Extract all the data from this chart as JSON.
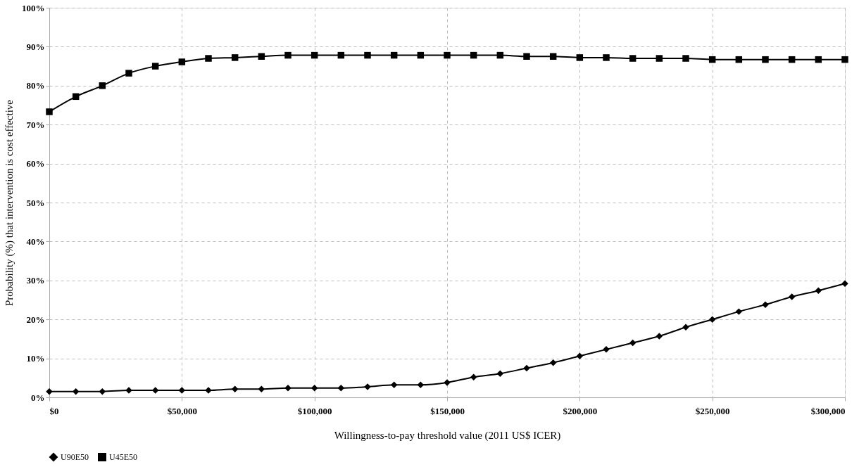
{
  "chart_data": {
    "type": "line",
    "xlabel": "Willingness-to-pay threshold value (2011 US$ ICER)",
    "ylabel": "Probability (%) that intervention is cost effective",
    "x": [
      0,
      10000,
      20000,
      30000,
      40000,
      50000,
      60000,
      70000,
      80000,
      90000,
      100000,
      110000,
      120000,
      130000,
      140000,
      150000,
      160000,
      170000,
      180000,
      190000,
      200000,
      210000,
      220000,
      230000,
      240000,
      250000,
      260000,
      270000,
      280000,
      290000,
      300000
    ],
    "series": [
      {
        "name": "U90E50",
        "color": "#000000",
        "marker": "diamond",
        "values": [
          1.5,
          1.5,
          1.5,
          1.8,
          1.8,
          1.8,
          1.8,
          2.1,
          2.1,
          2.4,
          2.4,
          2.4,
          2.7,
          3.2,
          3.2,
          3.8,
          5.2,
          6.1,
          7.5,
          8.9,
          10.6,
          12.3,
          14.0,
          15.7,
          18.0,
          20.0,
          22.0,
          23.8,
          25.8,
          27.4,
          29.2
        ]
      },
      {
        "name": "U45E50",
        "color": "#000000",
        "marker": "square",
        "values": [
          73.3,
          77.2,
          80.0,
          83.2,
          85.0,
          86.1,
          87.0,
          87.2,
          87.5,
          87.8,
          87.8,
          87.8,
          87.8,
          87.8,
          87.8,
          87.8,
          87.8,
          87.8,
          87.5,
          87.5,
          87.2,
          87.2,
          87.0,
          87.0,
          87.0,
          86.7,
          86.7,
          86.7,
          86.7,
          86.7,
          86.7
        ]
      }
    ],
    "xlim": [
      0,
      300000
    ],
    "xticks": [
      {
        "value": 0,
        "label": "$0"
      },
      {
        "value": 50000,
        "label": "$50,000"
      },
      {
        "value": 100000,
        "label": "$100,000"
      },
      {
        "value": 150000,
        "label": "$150,000"
      },
      {
        "value": 200000,
        "label": "$200,000"
      },
      {
        "value": 250000,
        "label": "$250,000"
      },
      {
        "value": 300000,
        "label": "$300,000"
      }
    ],
    "ylim": [
      0,
      100
    ],
    "yticks": [
      {
        "value": 0,
        "label": "0%"
      },
      {
        "value": 10,
        "label": "10%"
      },
      {
        "value": 20,
        "label": "20%"
      },
      {
        "value": 30,
        "label": "30%"
      },
      {
        "value": 40,
        "label": "40%"
      },
      {
        "value": 50,
        "label": "50%"
      },
      {
        "value": 60,
        "label": "60%"
      },
      {
        "value": 70,
        "label": "70%"
      },
      {
        "value": 80,
        "label": "80%"
      },
      {
        "value": 90,
        "label": "90%"
      },
      {
        "value": 100,
        "label": "100%"
      }
    ],
    "grid": true,
    "legend": "bottom",
    "line_style": "solid"
  }
}
